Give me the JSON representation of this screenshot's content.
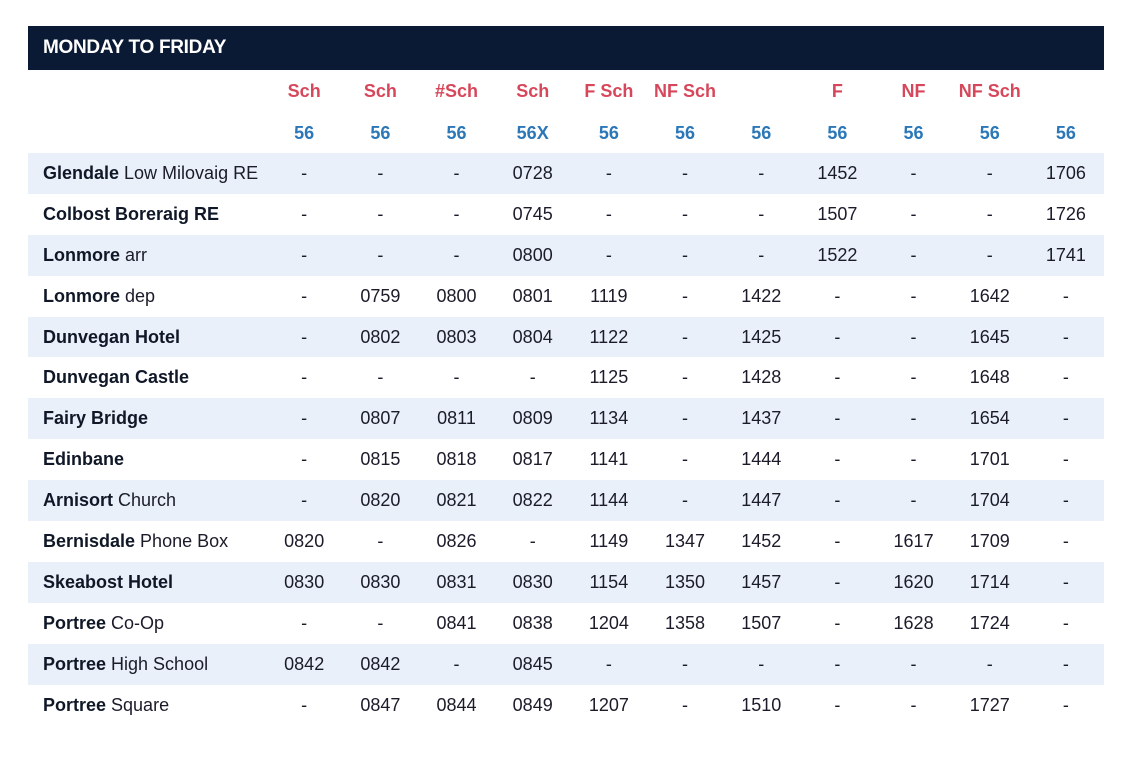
{
  "header": {
    "title": "MONDAY TO FRIDAY"
  },
  "notes": [
    "Sch",
    "Sch",
    "#Sch",
    "Sch",
    "F Sch",
    "NF Sch",
    "",
    "F",
    "NF",
    "NF Sch",
    ""
  ],
  "routes": [
    "56",
    "56",
    "56",
    "56X",
    "56",
    "56",
    "56",
    "56",
    "56",
    "56",
    "56"
  ],
  "stops": [
    {
      "bold": "Glendale",
      "rest": " Low Milovaig RE",
      "times": [
        "-",
        "-",
        "-",
        "0728",
        "-",
        "-",
        "-",
        "1452",
        "-",
        "-",
        "1706"
      ]
    },
    {
      "bold": "Colbost Boreraig RE",
      "rest": "",
      "times": [
        "-",
        "-",
        "-",
        "0745",
        "-",
        "-",
        "-",
        "1507",
        "-",
        "-",
        "1726"
      ]
    },
    {
      "bold": "Lonmore",
      "rest": " arr",
      "times": [
        "-",
        "-",
        "-",
        "0800",
        "-",
        "-",
        "-",
        "1522",
        "-",
        "-",
        "1741"
      ]
    },
    {
      "bold": "Lonmore",
      "rest": " dep",
      "times": [
        "-",
        "0759",
        "0800",
        "0801",
        "1119",
        "-",
        "1422",
        "-",
        "-",
        "1642",
        "-"
      ]
    },
    {
      "bold": "Dunvegan Hotel",
      "rest": "",
      "times": [
        "-",
        "0802",
        "0803",
        "0804",
        "1122",
        "-",
        "1425",
        "-",
        "-",
        "1645",
        "-"
      ]
    },
    {
      "bold": "Dunvegan Castle",
      "rest": "",
      "times": [
        "-",
        "-",
        "-",
        "-",
        "1125",
        "-",
        "1428",
        "-",
        "-",
        "1648",
        "-"
      ]
    },
    {
      "bold": "Fairy Bridge",
      "rest": "",
      "times": [
        "-",
        "0807",
        "0811",
        "0809",
        "1134",
        "-",
        "1437",
        "-",
        "-",
        "1654",
        "-"
      ]
    },
    {
      "bold": "Edinbane",
      "rest": "",
      "times": [
        "-",
        "0815",
        "0818",
        "0817",
        "1141",
        "-",
        "1444",
        "-",
        "-",
        "1701",
        "-"
      ]
    },
    {
      "bold": "Arnisort",
      "rest": " Church",
      "times": [
        "-",
        "0820",
        "0821",
        "0822",
        "1144",
        "-",
        "1447",
        "-",
        "-",
        "1704",
        "-"
      ]
    },
    {
      "bold": "Bernisdale",
      "rest": " Phone Box",
      "times": [
        "0820",
        "-",
        "0826",
        "-",
        "1149",
        "1347",
        "1452",
        "-",
        "1617",
        "1709",
        "-"
      ]
    },
    {
      "bold": "Skeabost Hotel",
      "rest": "",
      "times": [
        "0830",
        "0830",
        "0831",
        "0830",
        "1154",
        "1350",
        "1457",
        "-",
        "1620",
        "1714",
        "-"
      ]
    },
    {
      "bold": "Portree",
      "rest": " Co-Op",
      "times": [
        "-",
        "-",
        "0841",
        "0838",
        "1204",
        "1358",
        "1507",
        "-",
        "1628",
        "1724",
        "-"
      ]
    },
    {
      "bold": "Portree",
      "rest": " High School",
      "times": [
        "0842",
        "0842",
        "-",
        "0845",
        "-",
        "-",
        "-",
        "-",
        "-",
        "-",
        "-"
      ]
    },
    {
      "bold": "Portree",
      "rest": " Square",
      "times": [
        "-",
        "0847",
        "0844",
        "0849",
        "1207",
        "-",
        "1510",
        "-",
        "-",
        "1727",
        "-"
      ]
    }
  ]
}
